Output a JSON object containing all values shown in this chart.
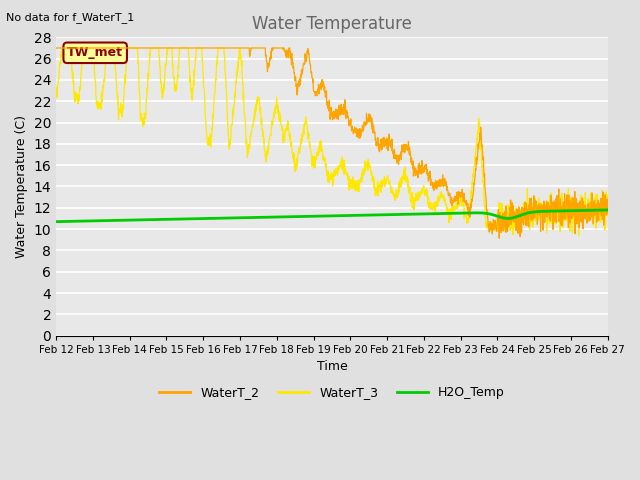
{
  "title": "Water Temperature",
  "top_left_text": "No data for f_WaterT_1",
  "annotation_text": "TW_met",
  "xlabel": "Time",
  "ylabel": "Water Temperature (C)",
  "ylim": [
    0,
    28
  ],
  "yticks": [
    0,
    2,
    4,
    6,
    8,
    10,
    12,
    14,
    16,
    18,
    20,
    22,
    24,
    26,
    28
  ],
  "xtick_labels": [
    "Feb 12",
    "Feb 13",
    "Feb 14",
    "Feb 15",
    "Feb 16",
    "Feb 17",
    "Feb 18",
    "Feb 19",
    "Feb 20",
    "Feb 21",
    "Feb 22",
    "Feb 23",
    "Feb 24",
    "Feb 25",
    "Feb 26",
    "Feb 27"
  ],
  "background_color": "#e0e0e0",
  "plot_bg_color": "#e8e8e8",
  "grid_color": "#ffffff",
  "color_WaterT_2": "#FFA500",
  "color_WaterT_3": "#FFE800",
  "color_H2O_Temp": "#00CC00",
  "legend_labels": [
    "WaterT_2",
    "WaterT_3",
    "H2O_Temp"
  ],
  "annotation_box_color": "#FFFF99",
  "annotation_text_color": "#8B0000",
  "annotation_border_color": "#8B0000",
  "title_color": "#666666"
}
